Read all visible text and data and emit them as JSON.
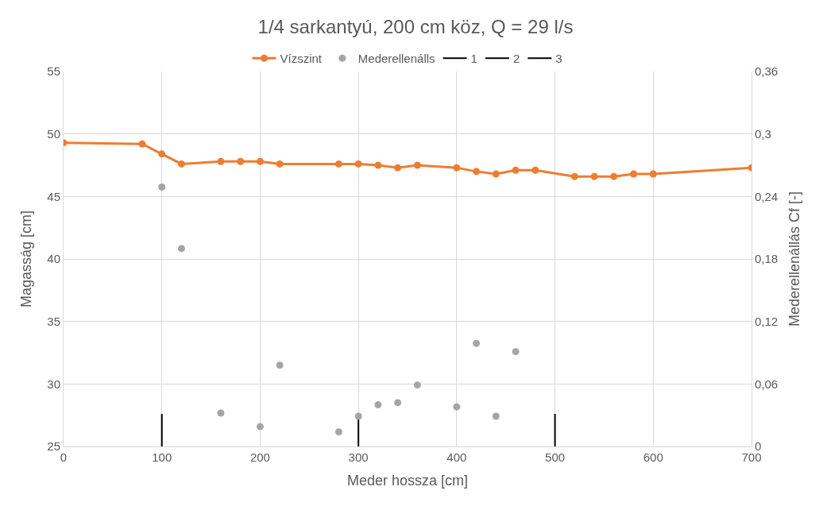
{
  "chart_data": {
    "type": "line",
    "title": "1/4 sarkantyú, 200 cm köz, Q = 29 l/s",
    "xlabel": "Meder hossza [cm]",
    "ylabel": "Magasság [cm]",
    "y2label": "Mederellenállás Cf [-]",
    "xlim": [
      0,
      700
    ],
    "xticks": [
      0,
      100,
      200,
      300,
      400,
      500,
      600,
      700
    ],
    "ylim": [
      25,
      55
    ],
    "yticks": [
      25,
      30,
      35,
      40,
      45,
      50,
      55
    ],
    "y2lim": [
      0,
      0.36
    ],
    "y2ticks": [
      {
        "value": 0,
        "label": "0"
      },
      {
        "value": 0.06,
        "label": "0,06"
      },
      {
        "value": 0.12,
        "label": "0,12"
      },
      {
        "value": 0.18,
        "label": "0,18"
      },
      {
        "value": 0.24,
        "label": "0,24"
      },
      {
        "value": 0.3,
        "label": "0,3"
      },
      {
        "value": 0.36,
        "label": "0,36"
      }
    ],
    "grid": true,
    "legend": "top",
    "series": [
      {
        "name": "Vízszint",
        "marker": "circle",
        "color": "#ed7d31",
        "x": [
          0,
          80,
          100,
          120,
          160,
          180,
          200,
          220,
          280,
          300,
          320,
          340,
          360,
          400,
          420,
          440,
          460,
          480,
          520,
          540,
          560,
          580,
          600,
          700
        ],
        "values": [
          49.3,
          49.2,
          48.4,
          47.6,
          47.8,
          47.8,
          47.8,
          47.6,
          47.6,
          47.6,
          47.5,
          47.3,
          47.5,
          47.3,
          47.0,
          46.8,
          47.1,
          47.1,
          46.6,
          46.6,
          46.6,
          46.8,
          46.8,
          47.3
        ]
      },
      {
        "name": "Mederellenálls",
        "type": "scatter",
        "marker": "circle",
        "axis": "y2",
        "color": "#a5a5a5",
        "x": [
          100,
          120,
          160,
          200,
          220,
          280,
          300,
          320,
          340,
          360,
          400,
          420,
          440,
          460
        ],
        "values": [
          0.249,
          0.19,
          0.032,
          0.019,
          0.078,
          0.014,
          0.029,
          0.04,
          0.042,
          0.059,
          0.038,
          0.099,
          0.029,
          0.091
        ]
      },
      {
        "name": "1",
        "marker": "none",
        "color": "#000000",
        "x": [
          100,
          100
        ],
        "values": [
          25,
          27.6
        ]
      },
      {
        "name": "2",
        "marker": "none",
        "color": "#000000",
        "x": [
          300,
          300
        ],
        "values": [
          25,
          27.6
        ]
      },
      {
        "name": "3",
        "marker": "none",
        "color": "#000000",
        "x": [
          500,
          500
        ],
        "values": [
          25,
          27.6
        ]
      }
    ]
  }
}
